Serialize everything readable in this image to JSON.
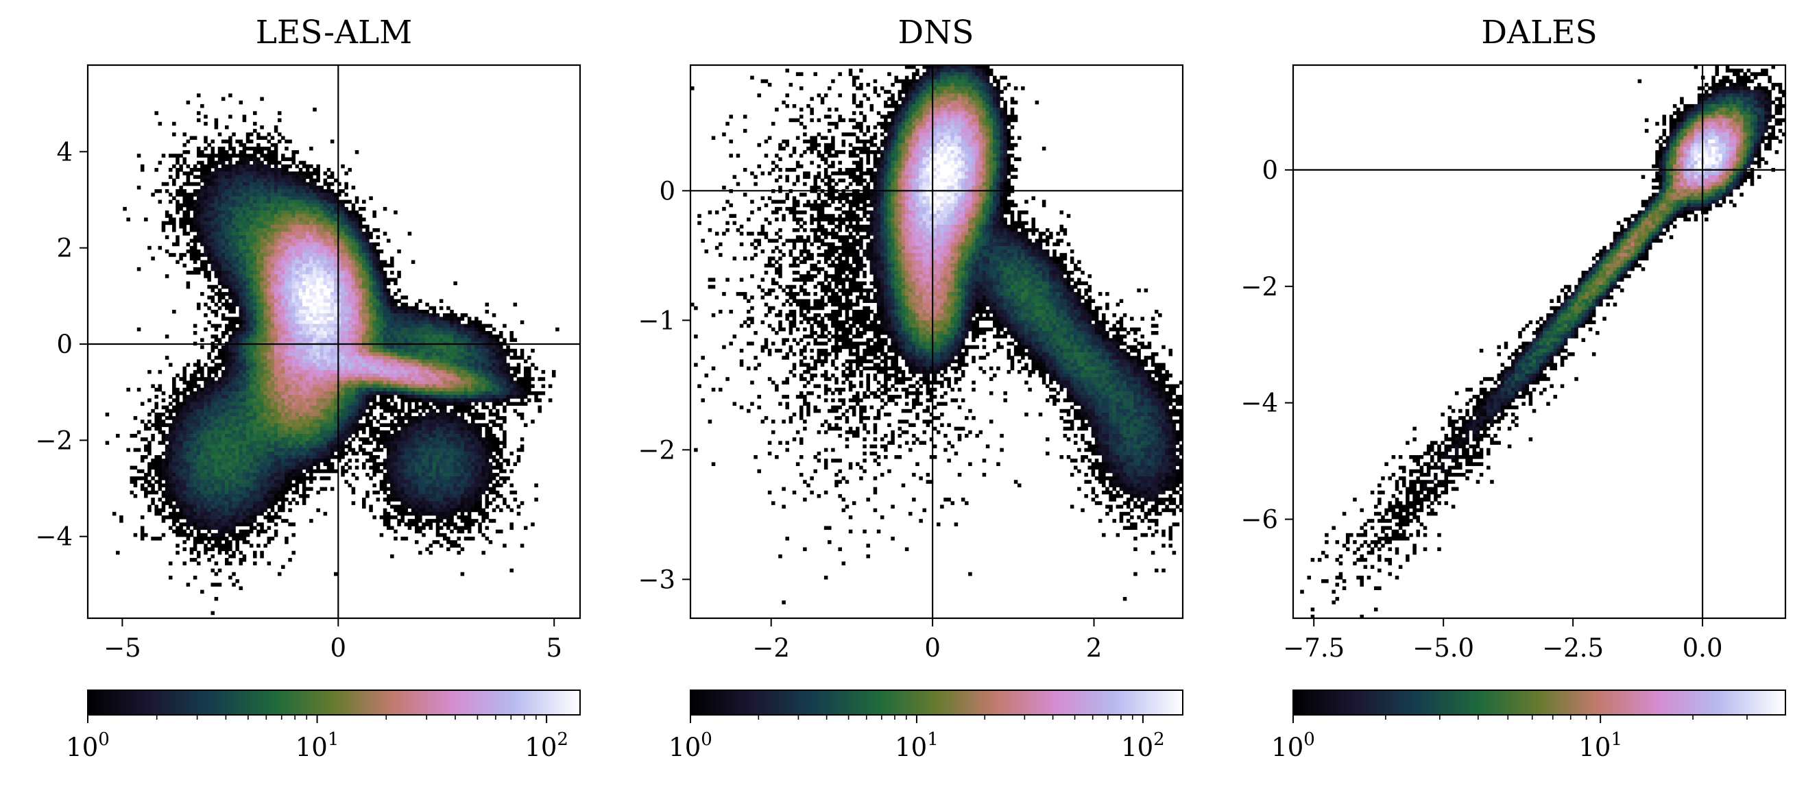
{
  "chart_data": [
    {
      "type": "heatmap",
      "title": "LES-ALM",
      "xlabel": "",
      "ylabel": "",
      "xlim": [
        -5.8,
        5.6
      ],
      "ylim": [
        -5.7,
        5.8
      ],
      "xticks": [
        -5,
        0,
        5
      ],
      "xtick_labels": [
        "−5",
        "0",
        "5"
      ],
      "yticks": [
        -4,
        -2,
        0,
        2,
        4
      ],
      "ytick_labels": [
        "−4",
        "−2",
        "0",
        "2",
        "4"
      ],
      "reference_lines": {
        "x": 0,
        "y": 0
      },
      "colorbar": {
        "scale": "log",
        "range": [
          1,
          140
        ],
        "major_ticks": [
          1,
          10,
          100
        ],
        "major_tick_labels": [
          {
            "base": "10",
            "exp": "0"
          },
          {
            "base": "10",
            "exp": "1"
          },
          {
            "base": "10",
            "exp": "2"
          }
        ],
        "colormap": "cubehelix"
      },
      "density_blobs": [
        {
          "x": -0.5,
          "y": 0.9,
          "sx": 0.55,
          "sy": 0.75,
          "rho": -0.2,
          "weight": 140
        },
        {
          "x": 0.9,
          "y": -0.5,
          "sx": 1.2,
          "sy": 0.25,
          "rho": -0.7,
          "weight": 55
        },
        {
          "x": -0.9,
          "y": -0.8,
          "sx": 0.6,
          "sy": 0.7,
          "rho": 0.0,
          "weight": 25
        },
        {
          "x": -1.7,
          "y": 2.2,
          "sx": 0.9,
          "sy": 0.9,
          "rho": -0.3,
          "weight": 6
        },
        {
          "x": -2.6,
          "y": -2.3,
          "sx": 0.8,
          "sy": 0.9,
          "rho": 0.1,
          "weight": 6
        },
        {
          "x": 2.3,
          "y": -2.5,
          "sx": 0.8,
          "sy": 0.7,
          "rho": 0.0,
          "weight": 4
        },
        {
          "x": 2.3,
          "y": 0.0,
          "sx": 0.9,
          "sy": 0.4,
          "rho": -0.5,
          "weight": 6
        }
      ]
    },
    {
      "type": "heatmap",
      "title": "DNS",
      "xlabel": "",
      "ylabel": "",
      "xlim": [
        -3.0,
        3.1
      ],
      "ylim": [
        -3.3,
        0.97
      ],
      "xticks": [
        -2,
        0,
        2
      ],
      "xtick_labels": [
        "−2",
        "0",
        "2"
      ],
      "yticks": [
        -3,
        -2,
        -1,
        0
      ],
      "ytick_labels": [
        "−3",
        "−2",
        "−1",
        "0"
      ],
      "reference_lines": {
        "x": 0,
        "y": 0
      },
      "colorbar": {
        "scale": "log",
        "range": [
          1,
          150
        ],
        "major_ticks": [
          1,
          10,
          100
        ],
        "major_tick_labels": [
          {
            "base": "10",
            "exp": "0"
          },
          {
            "base": "10",
            "exp": "1"
          },
          {
            "base": "10",
            "exp": "2"
          }
        ],
        "colormap": "cubehelix"
      },
      "density_blobs": [
        {
          "x": 0.15,
          "y": 0.15,
          "sx": 0.25,
          "sy": 0.28,
          "rho": 0.2,
          "weight": 150
        },
        {
          "x": -0.05,
          "y": -0.35,
          "sx": 0.22,
          "sy": 0.35,
          "rho": 0.0,
          "weight": 40
        },
        {
          "x": 0.0,
          "y": -0.9,
          "sx": 0.2,
          "sy": 0.2,
          "rho": 0.0,
          "weight": 12
        },
        {
          "x": 1.2,
          "y": -0.8,
          "sx": 0.4,
          "sy": 0.3,
          "rho": -0.6,
          "weight": 6
        },
        {
          "x": 1.9,
          "y": -1.35,
          "sx": 0.3,
          "sy": 0.2,
          "rho": -0.5,
          "weight": 4
        },
        {
          "x": 2.5,
          "y": -1.85,
          "sx": 0.35,
          "sy": 0.35,
          "rho": -0.3,
          "weight": 4
        },
        {
          "x": -0.8,
          "y": -0.6,
          "sx": 0.8,
          "sy": 0.8,
          "rho": 0.0,
          "weight": 1
        }
      ]
    },
    {
      "type": "heatmap",
      "title": "DALES",
      "xlabel": "",
      "ylabel": "",
      "xlim": [
        -7.9,
        1.6
      ],
      "ylim": [
        -7.7,
        1.8
      ],
      "xticks": [
        -7.5,
        -5.0,
        -2.5,
        0.0
      ],
      "xtick_labels": [
        "−7.5",
        "−5.0",
        "−2.5",
        "0.0"
      ],
      "yticks": [
        -6,
        -4,
        -2,
        0
      ],
      "ytick_labels": [
        "−6",
        "−4",
        "−2",
        "0"
      ],
      "reference_lines": {
        "x": 0,
        "y": 0
      },
      "colorbar": {
        "scale": "log",
        "range": [
          1,
          40
        ],
        "major_ticks": [
          1,
          10
        ],
        "major_tick_labels": [
          {
            "base": "10",
            "exp": "0"
          },
          {
            "base": "10",
            "exp": "1"
          }
        ],
        "colormap": "cubehelix"
      },
      "density_blobs": [
        {
          "x": 0.1,
          "y": 0.25,
          "sx": 0.35,
          "sy": 0.35,
          "rho": 0.3,
          "weight": 40
        },
        {
          "x": -1.3,
          "y": -1.2,
          "sx": 0.8,
          "sy": 0.8,
          "rho": 0.97,
          "weight": 8
        },
        {
          "x": -3.0,
          "y": -3.0,
          "sx": 0.8,
          "sy": 0.8,
          "rho": 0.95,
          "weight": 3
        },
        {
          "x": -5.2,
          "y": -5.3,
          "sx": 1.0,
          "sy": 1.0,
          "rho": 0.9,
          "weight": 1
        },
        {
          "x": 0.6,
          "y": 0.9,
          "sx": 0.5,
          "sy": 0.4,
          "rho": 0.2,
          "weight": 3
        }
      ]
    }
  ]
}
